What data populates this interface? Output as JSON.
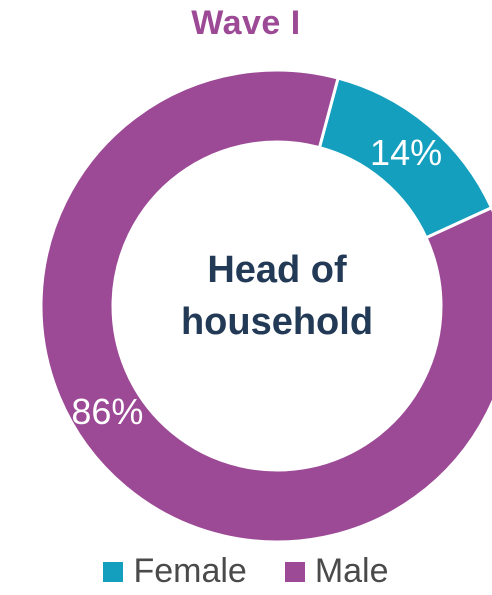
{
  "colors": {
    "title": "#9c4a96",
    "center_text": "#233a56",
    "female": "#159fbf",
    "male": "#9c4a96"
  },
  "chart_data": {
    "type": "pie",
    "title": "Wave I",
    "center_label": [
      "Head of",
      "household"
    ],
    "legend_position": "bottom",
    "slices": [
      {
        "name": "Female",
        "value": 14,
        "label": "14%",
        "color": "#159fbf"
      },
      {
        "name": "Male",
        "value": 86,
        "label": "86%",
        "color": "#9c4a96"
      }
    ]
  }
}
